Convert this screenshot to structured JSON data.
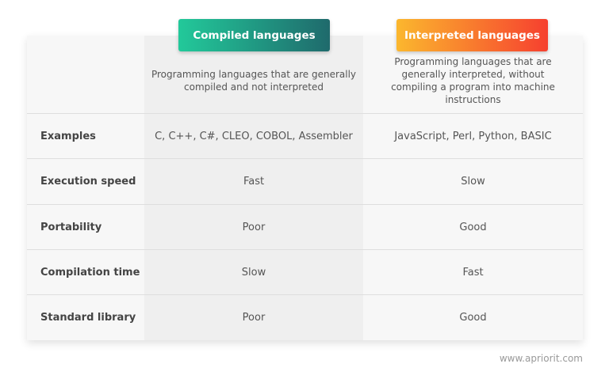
{
  "columns": [
    {
      "title": "Compiled languages",
      "description": "Programming languages that are generally compiled and not interpreted",
      "gradient": [
        "#22c99a",
        "#1f6a6c"
      ]
    },
    {
      "title": "Interpreted languages",
      "description": "Programming languages that are generally interpreted, without compiling a program into machine instructions",
      "gradient": [
        "#fbb72e",
        "#f6402f"
      ]
    }
  ],
  "rows": [
    {
      "label": "Examples",
      "compiled": "C, C++, C#, CLEO, COBOL, Assembler",
      "interpreted": "JavaScript, Perl, Python, BASIC"
    },
    {
      "label": "Execution speed",
      "compiled": "Fast",
      "interpreted": "Slow"
    },
    {
      "label": "Portability",
      "compiled": "Poor",
      "interpreted": "Good"
    },
    {
      "label": "Compilation time",
      "compiled": "Slow",
      "interpreted": "Fast"
    },
    {
      "label": "Standard library",
      "compiled": "Poor",
      "interpreted": "Good"
    }
  ],
  "footer": "www.apriorit.com"
}
